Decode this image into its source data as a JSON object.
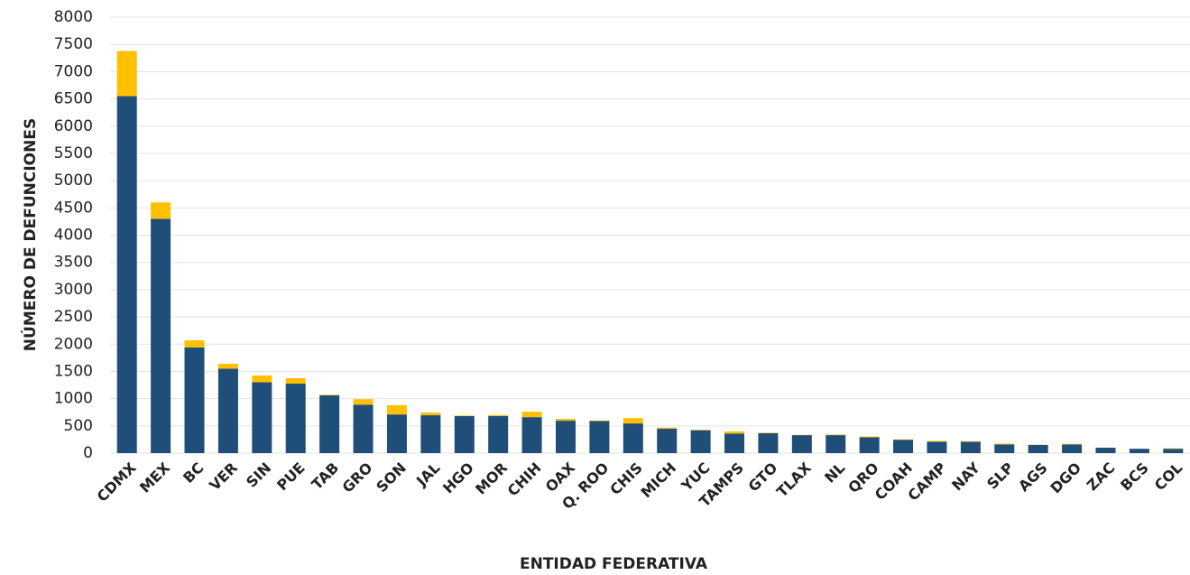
{
  "chart_data": {
    "type": "stacked_bar",
    "x_label": "ENTIDAD FEDERATIVA",
    "y_label": "NÚMERO DE DEFUNCIONES",
    "categories": [
      "CDMX",
      "MEX",
      "BC",
      "VER",
      "SIN",
      "PUE",
      "TAB",
      "GRO",
      "SON",
      "JAL",
      "HGO",
      "MOR",
      "CHIH",
      "OAX",
      "Q. ROO",
      "CHIS",
      "MICH",
      "YUC",
      "TAMPS",
      "GTO",
      "TLAX",
      "NL",
      "QRO",
      "COAH",
      "CAMP",
      "NAY",
      "SLP",
      "AGS",
      "DGO",
      "ZAC",
      "BCS",
      "COL"
    ],
    "series": [
      {
        "color": "#1f4e79",
        "values": [
          6550,
          4300,
          1940,
          1550,
          1300,
          1275,
          1060,
          890,
          710,
          695,
          680,
          680,
          660,
          595,
          590,
          545,
          450,
          420,
          360,
          365,
          330,
          330,
          290,
          245,
          210,
          210,
          160,
          150,
          160,
          100,
          80,
          80
        ]
      },
      {
        "color": "#ffc000",
        "values": [
          830,
          300,
          130,
          90,
          125,
          100,
          10,
          100,
          170,
          50,
          10,
          20,
          100,
          35,
          10,
          100,
          20,
          10,
          40,
          10,
          5,
          10,
          15,
          10,
          15,
          10,
          15,
          5,
          10,
          0,
          0,
          10
        ]
      }
    ],
    "ylim": [
      0,
      8000
    ],
    "yticks": [
      0,
      500,
      1000,
      1500,
      2000,
      2500,
      3000,
      3500,
      4000,
      4500,
      5000,
      5500,
      6000,
      6500,
      7000,
      7500,
      8000
    ],
    "grid": true
  }
}
